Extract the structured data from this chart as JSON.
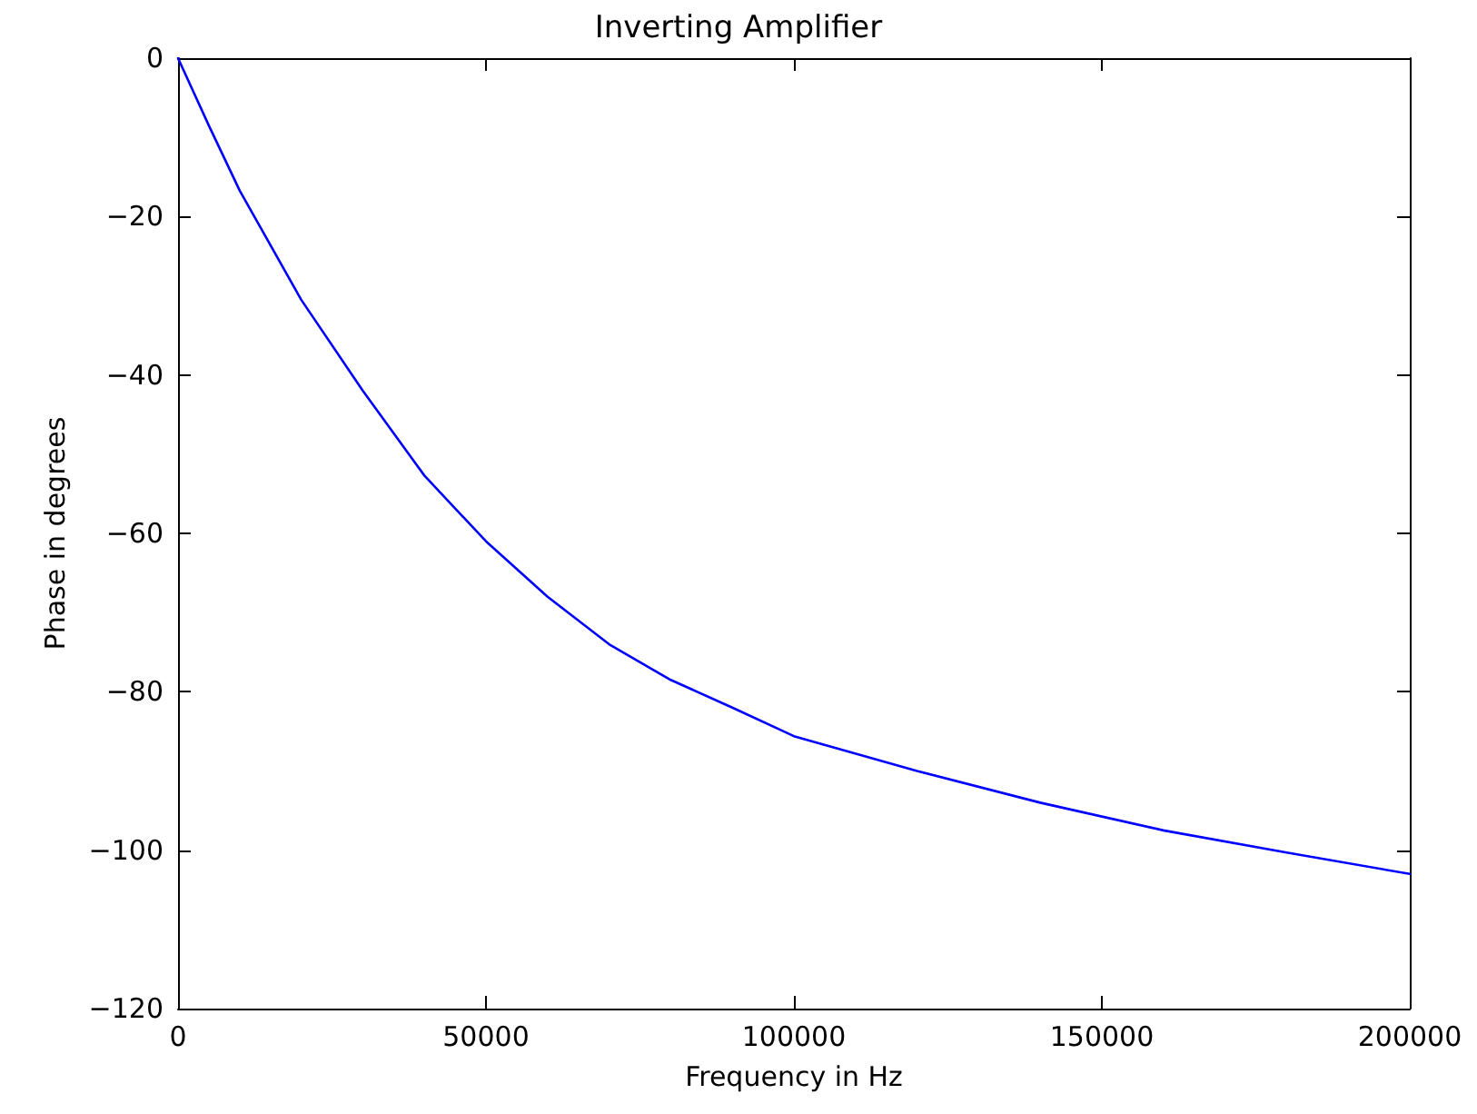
{
  "chart_data": {
    "type": "line",
    "title": "Inverting Amplifier",
    "xlabel": "Frequency in Hz",
    "ylabel": "Phase in degrees",
    "x": [
      0,
      5000,
      10000,
      20000,
      30000,
      40000,
      50000,
      60000,
      70000,
      80000,
      90000,
      100000,
      120000,
      140000,
      160000,
      180000,
      200000
    ],
    "series": [
      {
        "color": "#0000ff",
        "values": [
          0,
          -8.5,
          -16.7,
          -30.5,
          -42,
          -52.7,
          -61,
          -68,
          -74,
          -78.5,
          -82,
          -85.6,
          -90,
          -94,
          -97.5,
          -100.3,
          -103
        ]
      }
    ],
    "xlim": [
      0,
      200000
    ],
    "xticks": [
      0,
      50000,
      100000,
      150000,
      200000
    ],
    "ylim": [
      -120,
      0
    ],
    "yticks": [
      -120,
      -100,
      -80,
      -60,
      -40,
      -20,
      0
    ],
    "grid": false,
    "marker": "none",
    "line_style": "solid"
  }
}
